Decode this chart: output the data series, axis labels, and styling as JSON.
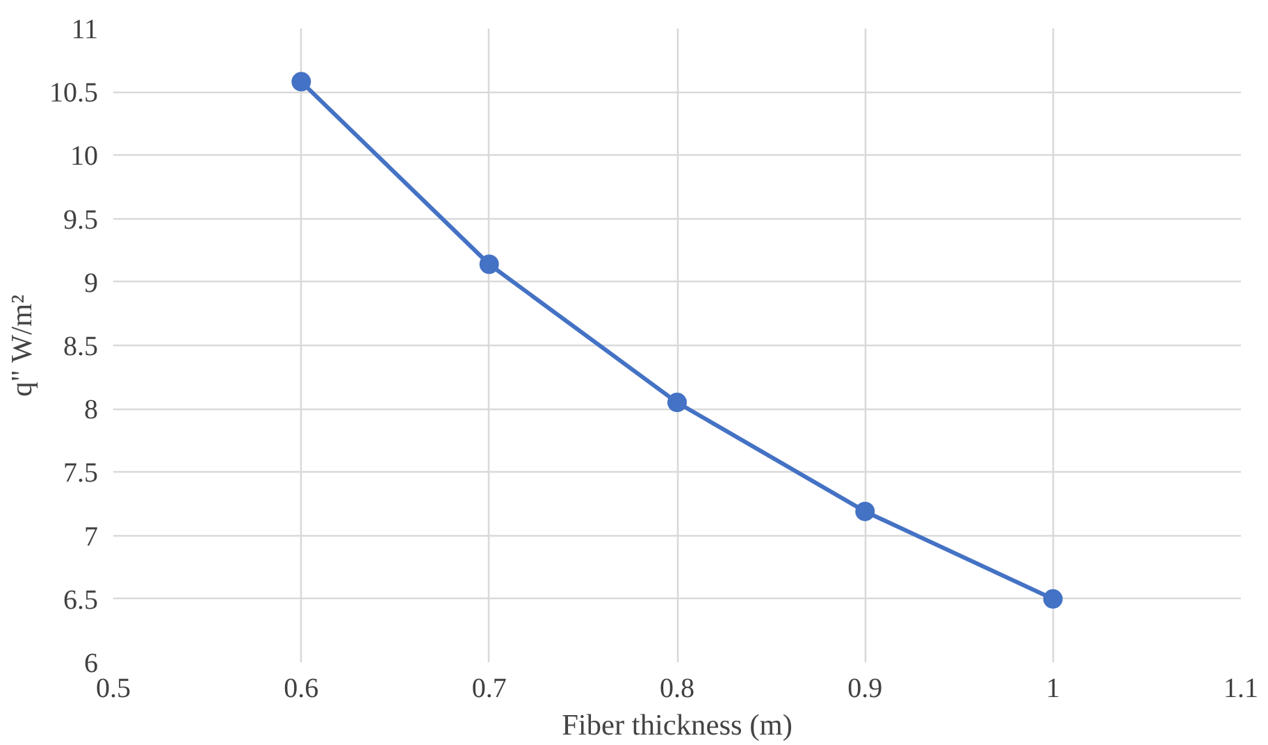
{
  "chart_data": {
    "type": "line",
    "xlabel": "Fiber thickness (m)",
    "ylabel": "q\" W/m²",
    "x": [
      0.6,
      0.7,
      0.8,
      0.9,
      1.0
    ],
    "series": [
      {
        "color": "#4472c4",
        "values": [
          10.58,
          9.14,
          8.05,
          7.19,
          6.5
        ]
      }
    ],
    "xlim": [
      0.5,
      1.1
    ],
    "xticks": [
      0.5,
      0.6,
      0.7,
      0.8,
      0.9,
      1,
      1.1
    ],
    "ylim": [
      6,
      11
    ],
    "yticks": [
      6,
      6.5,
      7,
      7.5,
      8,
      8.5,
      9,
      9.5,
      10,
      10.5,
      11
    ],
    "grid": true,
    "marker": "circle",
    "line_style": "solid"
  }
}
